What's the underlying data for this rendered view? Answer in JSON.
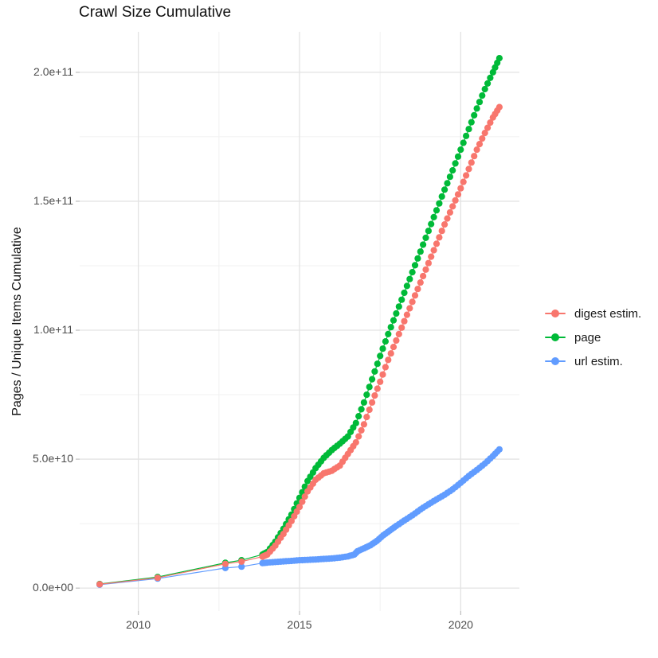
{
  "colors": {
    "digest": "#F8766D",
    "page": "#00BA38",
    "url": "#619CFF",
    "grid_major": "#e3e3e3",
    "grid_minor": "#f1f1f1",
    "tick": "#bdbdbd",
    "axis_text": "#4d4d4d",
    "title_text": "#111111"
  },
  "chart_data": {
    "type": "line-scatter",
    "title": "Crawl Size Cumulative",
    "xlabel": "",
    "ylabel": "Pages / Unique Items Cumulative",
    "value_unit": "billions of pages / unique items (1e9)",
    "legend_position": "right",
    "grid": "on",
    "draw_order": [
      1,
      2,
      0
    ],
    "x_axis": {
      "tick_labels": [
        "2010",
        "2015",
        "2020"
      ],
      "tick_values": [
        2010,
        2015,
        2020
      ],
      "minor_ticks": [
        2012.5,
        2017.5
      ],
      "range": [
        2008.18,
        2021.82
      ]
    },
    "y_axis": {
      "tick_labels": [
        "0.0e+00",
        "5.0e+10",
        "1.0e+11",
        "1.5e+11",
        "2.0e+11"
      ],
      "tick_values": [
        0,
        50,
        100,
        150,
        200
      ],
      "minor_ticks": [
        25,
        75,
        125,
        175
      ],
      "range": [
        -8.9,
        215.7
      ]
    },
    "series": [
      {
        "name": "digest estim.",
        "slug": "digest-estim",
        "color": "#F8766D",
        "points": [
          [
            2008.8,
            1.5
          ],
          [
            2010.6,
            4.0
          ],
          [
            2012.7,
            9.4
          ],
          [
            2013.2,
            10.3
          ],
          [
            2013.85,
            12.2
          ],
          [
            2014.0,
            13.0
          ],
          [
            2014.25,
            16.5
          ],
          [
            2014.5,
            21.0
          ],
          [
            2014.75,
            26.0
          ],
          [
            2015.0,
            31.5
          ],
          [
            2015.25,
            37.5
          ],
          [
            2015.5,
            42.0
          ],
          [
            2015.75,
            44.5
          ],
          [
            2016.0,
            45.5
          ],
          [
            2016.25,
            47.5
          ],
          [
            2016.5,
            52.0
          ],
          [
            2016.75,
            56.5
          ],
          [
            2017.0,
            63.5
          ],
          [
            2017.25,
            72.0
          ],
          [
            2017.5,
            80.0
          ],
          [
            2017.75,
            88.5
          ],
          [
            2018.0,
            96.0
          ],
          [
            2018.25,
            103.5
          ],
          [
            2018.5,
            111.0
          ],
          [
            2018.75,
            118.5
          ],
          [
            2019.0,
            126.0
          ],
          [
            2019.25,
            133.5
          ],
          [
            2019.5,
            141.0
          ],
          [
            2019.75,
            148.0
          ],
          [
            2020.0,
            155.0
          ],
          [
            2020.25,
            162.5
          ],
          [
            2020.5,
            170.0
          ],
          [
            2020.75,
            176.5
          ],
          [
            2021.0,
            182.5
          ],
          [
            2021.2,
            186.5
          ]
        ]
      },
      {
        "name": "page",
        "slug": "page",
        "color": "#00BA38",
        "points": [
          [
            2008.8,
            1.6
          ],
          [
            2010.6,
            4.3
          ],
          [
            2012.7,
            9.8
          ],
          [
            2013.2,
            10.8
          ],
          [
            2013.85,
            13.0
          ],
          [
            2014.0,
            14.0
          ],
          [
            2014.25,
            18.0
          ],
          [
            2014.5,
            23.0
          ],
          [
            2014.75,
            28.5
          ],
          [
            2015.0,
            35.0
          ],
          [
            2015.25,
            41.5
          ],
          [
            2015.5,
            46.5
          ],
          [
            2015.75,
            50.5
          ],
          [
            2016.0,
            53.5
          ],
          [
            2016.25,
            56.0
          ],
          [
            2016.5,
            58.8
          ],
          [
            2016.75,
            64.0
          ],
          [
            2017.0,
            72.0
          ],
          [
            2017.25,
            81.0
          ],
          [
            2017.5,
            90.0
          ],
          [
            2017.75,
            98.5
          ],
          [
            2018.0,
            106.5
          ],
          [
            2018.25,
            114.5
          ],
          [
            2018.5,
            122.5
          ],
          [
            2018.75,
            130.5
          ],
          [
            2019.0,
            138.5
          ],
          [
            2019.25,
            146.5
          ],
          [
            2019.5,
            154.5
          ],
          [
            2019.75,
            162.0
          ],
          [
            2020.0,
            170.0
          ],
          [
            2020.25,
            178.0
          ],
          [
            2020.5,
            186.0
          ],
          [
            2020.75,
            193.5
          ],
          [
            2021.0,
            200.0
          ],
          [
            2021.2,
            205.5
          ]
        ]
      },
      {
        "name": "url estim.",
        "slug": "url-estim",
        "color": "#619CFF",
        "points": [
          [
            2008.8,
            1.3
          ],
          [
            2010.6,
            3.7
          ],
          [
            2012.7,
            7.8
          ],
          [
            2013.2,
            8.3
          ],
          [
            2013.85,
            9.7
          ],
          [
            2014.0,
            9.9
          ],
          [
            2014.25,
            10.1
          ],
          [
            2014.5,
            10.35
          ],
          [
            2014.75,
            10.55
          ],
          [
            2015.0,
            10.8
          ],
          [
            2015.25,
            10.95
          ],
          [
            2015.5,
            11.1
          ],
          [
            2015.75,
            11.3
          ],
          [
            2016.0,
            11.5
          ],
          [
            2016.25,
            11.8
          ],
          [
            2016.5,
            12.3
          ],
          [
            2016.7,
            13.0
          ],
          [
            2016.8,
            14.3
          ],
          [
            2017.0,
            15.4
          ],
          [
            2017.2,
            16.6
          ],
          [
            2017.4,
            18.3
          ],
          [
            2017.6,
            20.5
          ],
          [
            2017.8,
            22.3
          ],
          [
            2018.0,
            24.1
          ],
          [
            2018.25,
            26.2
          ],
          [
            2018.5,
            28.2
          ],
          [
            2018.75,
            30.5
          ],
          [
            2019.0,
            32.5
          ],
          [
            2019.25,
            34.4
          ],
          [
            2019.5,
            36.2
          ],
          [
            2019.75,
            38.3
          ],
          [
            2020.0,
            40.8
          ],
          [
            2020.25,
            43.5
          ],
          [
            2020.5,
            45.8
          ],
          [
            2020.75,
            48.3
          ],
          [
            2021.0,
            51.2
          ],
          [
            2021.2,
            53.8
          ]
        ]
      }
    ]
  },
  "legend": {
    "items": [
      "digest estim.",
      "page",
      "url estim."
    ]
  }
}
